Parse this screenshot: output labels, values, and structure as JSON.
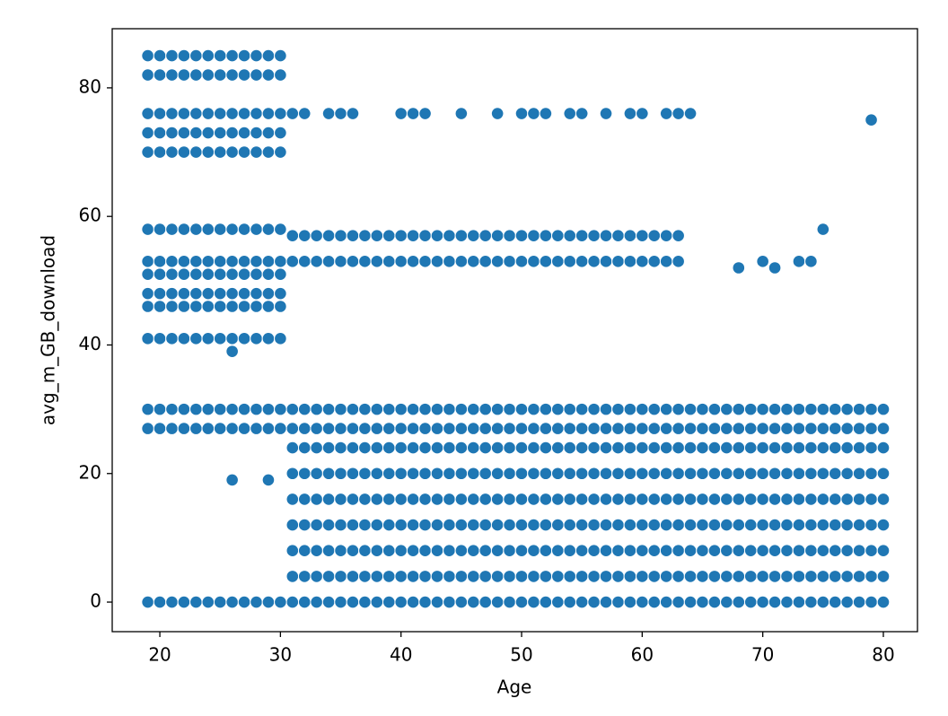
{
  "chart_data": {
    "type": "scatter",
    "xlabel": "Age",
    "ylabel": "avg_m_GB_download",
    "color": "#1f77b4",
    "xlim": [
      16.05,
      82.83
    ],
    "ylim": [
      -4.6,
      89.2
    ],
    "xticks": [
      20,
      30,
      40,
      50,
      60,
      70,
      80
    ],
    "yticks": [
      0,
      20,
      40,
      60,
      80
    ],
    "grid": false,
    "x": [
      31,
      31,
      31,
      31,
      31,
      31,
      31,
      31,
      31,
      32,
      32,
      32,
      32,
      32,
      32,
      32,
      32,
      32,
      33,
      33,
      33,
      33,
      33,
      33,
      33,
      33,
      33,
      34,
      34,
      34,
      34,
      34,
      34,
      34,
      34,
      34,
      35,
      35,
      35,
      35,
      35,
      35,
      35,
      35,
      35,
      36,
      36,
      36,
      36,
      36,
      36,
      36,
      36,
      36,
      37,
      37,
      37,
      37,
      37,
      37,
      37,
      37,
      37,
      38,
      38,
      38,
      38,
      38,
      38,
      38,
      38,
      38,
      39,
      39,
      39,
      39,
      39,
      39,
      39,
      39,
      39,
      40,
      40,
      40,
      40,
      40,
      40,
      40,
      40,
      40,
      41,
      41,
      41,
      41,
      41,
      41,
      41,
      41,
      41,
      42,
      42,
      42,
      42,
      42,
      42,
      42,
      42,
      42,
      43,
      43,
      43,
      43,
      43,
      43,
      43,
      43,
      43,
      44,
      44,
      44,
      44,
      44,
      44,
      44,
      44,
      44,
      45,
      45,
      45,
      45,
      45,
      45,
      45,
      45,
      45,
      46,
      46,
      46,
      46,
      46,
      46,
      46,
      46,
      46,
      47,
      47,
      47,
      47,
      47,
      47,
      47,
      47,
      47,
      48,
      48,
      48,
      48,
      48,
      48,
      48,
      48,
      48,
      49,
      49,
      49,
      49,
      49,
      49,
      49,
      49,
      49,
      50,
      50,
      50,
      50,
      50,
      50,
      50,
      50,
      50,
      51,
      51,
      51,
      51,
      51,
      51,
      51,
      51,
      51,
      52,
      52,
      52,
      52,
      52,
      52,
      52,
      52,
      52,
      53,
      53,
      53,
      53,
      53,
      53,
      53,
      53,
      53,
      54,
      54,
      54,
      54,
      54,
      54,
      54,
      54,
      54,
      55,
      55,
      55,
      55,
      55,
      55,
      55,
      55,
      55,
      56,
      56,
      56,
      56,
      56,
      56,
      56,
      56,
      56,
      57,
      57,
      57,
      57,
      57,
      57,
      57,
      57,
      57,
      58,
      58,
      58,
      58,
      58,
      58,
      58,
      58,
      58,
      59,
      59,
      59,
      59,
      59,
      59,
      59,
      59,
      59,
      60,
      60,
      60,
      60,
      60,
      60,
      60,
      60,
      60,
      61,
      61,
      61,
      61,
      61,
      61,
      61,
      61,
      61,
      62,
      62,
      62,
      62,
      62,
      62,
      62,
      62,
      62,
      63,
      63,
      63,
      63,
      63,
      63,
      63,
      63,
      63,
      64,
      64,
      64,
      64,
      64,
      64,
      64,
      64,
      64,
      65,
      65,
      65,
      65,
      65,
      65,
      65,
      65,
      65,
      66,
      66,
      66,
      66,
      66,
      66,
      66,
      66,
      66,
      67,
      67,
      67,
      67,
      67,
      67,
      67,
      67,
      67,
      68,
      68,
      68,
      68,
      68,
      68,
      68,
      68,
      68,
      69,
      69,
      69,
      69,
      69,
      69,
      69,
      69,
      69,
      70,
      70,
      70,
      70,
      70,
      70,
      70,
      70,
      70,
      71,
      71,
      71,
      71,
      71,
      71,
      71,
      71,
      71,
      72,
      72,
      72,
      72,
      72,
      72,
      72,
      72,
      72,
      73,
      73,
      73,
      73,
      73,
      73,
      73,
      73,
      73,
      74,
      74,
      74,
      74,
      74,
      74,
      74,
      74,
      74,
      75,
      75,
      75,
      75,
      75,
      75,
      75,
      75,
      75,
      76,
      76,
      76,
      76,
      76,
      76,
      76,
      76,
      76,
      77,
      77,
      77,
      77,
      77,
      77,
      77,
      77,
      77,
      78,
      78,
      78,
      78,
      78,
      78,
      78,
      78,
      78,
      79,
      79,
      79,
      79,
      79,
      79,
      79,
      79,
      79,
      80,
      80,
      80,
      80,
      80,
      80,
      80,
      80,
      80,
      19,
      19,
      19,
      19,
      19,
      19,
      19,
      19,
      19,
      19,
      19,
      19,
      19,
      19,
      20,
      20,
      20,
      20,
      20,
      20,
      20,
      20,
      20,
      20,
      20,
      20,
      20,
      20,
      21,
      21,
      21,
      21,
      21,
      21,
      21,
      21,
      21,
      21,
      21,
      21,
      21,
      21,
      22,
      22,
      22,
      22,
      22,
      22,
      22,
      22,
      22,
      22,
      22,
      22,
      22,
      22,
      23,
      23,
      23,
      23,
      23,
      23,
      23,
      23,
      23,
      23,
      23,
      23,
      23,
      23,
      24,
      24,
      24,
      24,
      24,
      24,
      24,
      24,
      24,
      24,
      24,
      24,
      24,
      24,
      25,
      25,
      25,
      25,
      25,
      25,
      25,
      25,
      25,
      25,
      25,
      25,
      25,
      25,
      26,
      26,
      26,
      26,
      26,
      26,
      26,
      26,
      26,
      26,
      26,
      26,
      26,
      26,
      27,
      27,
      27,
      27,
      27,
      27,
      27,
      27,
      27,
      27,
      27,
      27,
      27,
      27,
      28,
      28,
      28,
      28,
      28,
      28,
      28,
      28,
      28,
      28,
      28,
      28,
      28,
      28,
      29,
      29,
      29,
      29,
      29,
      29,
      29,
      29,
      29,
      29,
      29,
      29,
      29,
      29,
      30,
      30,
      30,
      30,
      30,
      30,
      30,
      30,
      30,
      30,
      30,
      30,
      30,
      30,
      31,
      32,
      33,
      34,
      35,
      36,
      37,
      38,
      39,
      40,
      41,
      42,
      43,
      44,
      45,
      46,
      47,
      48,
      49,
      50,
      51,
      52,
      53,
      54,
      55,
      56,
      57,
      58,
      59,
      60,
      61,
      62,
      63,
      31,
      32,
      33,
      34,
      35,
      36,
      37,
      38,
      39,
      40,
      41,
      42,
      43,
      44,
      45,
      46,
      47,
      48,
      49,
      50,
      51,
      52,
      53,
      54,
      55,
      56,
      57,
      58,
      59,
      60,
      61,
      62,
      63,
      31,
      32,
      34,
      35,
      36,
      40,
      41,
      42,
      45,
      48,
      50,
      51,
      52,
      54,
      55,
      57,
      59,
      60,
      62,
      63,
      64,
      26,
      29,
      26,
      68,
      70,
      71,
      73,
      74,
      75,
      79
    ],
    "y": [
      0,
      4,
      8,
      12,
      16,
      20,
      24,
      27,
      30,
      0,
      4,
      8,
      12,
      16,
      20,
      24,
      27,
      30,
      0,
      4,
      8,
      12,
      16,
      20,
      24,
      27,
      30,
      0,
      4,
      8,
      12,
      16,
      20,
      24,
      27,
      30,
      0,
      4,
      8,
      12,
      16,
      20,
      24,
      27,
      30,
      0,
      4,
      8,
      12,
      16,
      20,
      24,
      27,
      30,
      0,
      4,
      8,
      12,
      16,
      20,
      24,
      27,
      30,
      0,
      4,
      8,
      12,
      16,
      20,
      24,
      27,
      30,
      0,
      4,
      8,
      12,
      16,
      20,
      24,
      27,
      30,
      0,
      4,
      8,
      12,
      16,
      20,
      24,
      27,
      30,
      0,
      4,
      8,
      12,
      16,
      20,
      24,
      27,
      30,
      0,
      4,
      8,
      12,
      16,
      20,
      24,
      27,
      30,
      0,
      4,
      8,
      12,
      16,
      20,
      24,
      27,
      30,
      0,
      4,
      8,
      12,
      16,
      20,
      24,
      27,
      30,
      0,
      4,
      8,
      12,
      16,
      20,
      24,
      27,
      30,
      0,
      4,
      8,
      12,
      16,
      20,
      24,
      27,
      30,
      0,
      4,
      8,
      12,
      16,
      20,
      24,
      27,
      30,
      0,
      4,
      8,
      12,
      16,
      20,
      24,
      27,
      30,
      0,
      4,
      8,
      12,
      16,
      20,
      24,
      27,
      30,
      0,
      4,
      8,
      12,
      16,
      20,
      24,
      27,
      30,
      0,
      4,
      8,
      12,
      16,
      20,
      24,
      27,
      30,
      0,
      4,
      8,
      12,
      16,
      20,
      24,
      27,
      30,
      0,
      4,
      8,
      12,
      16,
      20,
      24,
      27,
      30,
      0,
      4,
      8,
      12,
      16,
      20,
      24,
      27,
      30,
      0,
      4,
      8,
      12,
      16,
      20,
      24,
      27,
      30,
      0,
      4,
      8,
      12,
      16,
      20,
      24,
      27,
      30,
      0,
      4,
      8,
      12,
      16,
      20,
      24,
      27,
      30,
      0,
      4,
      8,
      12,
      16,
      20,
      24,
      27,
      30,
      0,
      4,
      8,
      12,
      16,
      20,
      24,
      27,
      30,
      0,
      4,
      8,
      12,
      16,
      20,
      24,
      27,
      30,
      0,
      4,
      8,
      12,
      16,
      20,
      24,
      27,
      30,
      0,
      4,
      8,
      12,
      16,
      20,
      24,
      27,
      30,
      0,
      4,
      8,
      12,
      16,
      20,
      24,
      27,
      30,
      0,
      4,
      8,
      12,
      16,
      20,
      24,
      27,
      30,
      0,
      4,
      8,
      12,
      16,
      20,
      24,
      27,
      30,
      0,
      4,
      8,
      12,
      16,
      20,
      24,
      27,
      30,
      0,
      4,
      8,
      12,
      16,
      20,
      24,
      27,
      30,
      0,
      4,
      8,
      12,
      16,
      20,
      24,
      27,
      30,
      0,
      4,
      8,
      12,
      16,
      20,
      24,
      27,
      30,
      0,
      4,
      8,
      12,
      16,
      20,
      24,
      27,
      30,
      0,
      4,
      8,
      12,
      16,
      20,
      24,
      27,
      30,
      0,
      4,
      8,
      12,
      16,
      20,
      24,
      27,
      30,
      0,
      4,
      8,
      12,
      16,
      20,
      24,
      27,
      30,
      0,
      4,
      8,
      12,
      16,
      20,
      24,
      27,
      30,
      0,
      4,
      8,
      12,
      16,
      20,
      24,
      27,
      30,
      0,
      4,
      8,
      12,
      16,
      20,
      24,
      27,
      30,
      0,
      4,
      8,
      12,
      16,
      20,
      24,
      27,
      30,
      0,
      4,
      8,
      12,
      16,
      20,
      24,
      27,
      30,
      0,
      4,
      8,
      12,
      16,
      20,
      24,
      27,
      30,
      0,
      4,
      8,
      12,
      16,
      20,
      24,
      27,
      30,
      85,
      82,
      76,
      73,
      70,
      58,
      53,
      51,
      48,
      46,
      41,
      30,
      27,
      0,
      85,
      82,
      76,
      73,
      70,
      58,
      53,
      51,
      48,
      46,
      41,
      30,
      27,
      0,
      85,
      82,
      76,
      73,
      70,
      58,
      53,
      51,
      48,
      46,
      41,
      30,
      27,
      0,
      85,
      82,
      76,
      73,
      70,
      58,
      53,
      51,
      48,
      46,
      41,
      30,
      27,
      0,
      85,
      82,
      76,
      73,
      70,
      58,
      53,
      51,
      48,
      46,
      41,
      30,
      27,
      0,
      85,
      82,
      76,
      73,
      70,
      58,
      53,
      51,
      48,
      46,
      41,
      30,
      27,
      0,
      85,
      82,
      76,
      73,
      70,
      58,
      53,
      51,
      48,
      46,
      41,
      30,
      27,
      0,
      85,
      82,
      76,
      73,
      70,
      58,
      53,
      51,
      48,
      46,
      41,
      30,
      27,
      0,
      85,
      82,
      76,
      73,
      70,
      58,
      53,
      51,
      48,
      46,
      41,
      30,
      27,
      0,
      85,
      82,
      76,
      73,
      70,
      58,
      53,
      51,
      48,
      46,
      41,
      30,
      27,
      0,
      85,
      82,
      76,
      73,
      70,
      58,
      53,
      51,
      48,
      46,
      41,
      30,
      27,
      0,
      85,
      82,
      76,
      73,
      70,
      58,
      53,
      51,
      48,
      46,
      41,
      30,
      27,
      0,
      53,
      53,
      53,
      53,
      53,
      53,
      53,
      53,
      53,
      53,
      53,
      53,
      53,
      53,
      53,
      53,
      53,
      53,
      53,
      53,
      53,
      53,
      53,
      53,
      53,
      53,
      53,
      53,
      53,
      53,
      53,
      53,
      53,
      57,
      57,
      57,
      57,
      57,
      57,
      57,
      57,
      57,
      57,
      57,
      57,
      57,
      57,
      57,
      57,
      57,
      57,
      57,
      57,
      57,
      57,
      57,
      57,
      57,
      57,
      57,
      57,
      57,
      57,
      57,
      57,
      57,
      76,
      76,
      76,
      76,
      76,
      76,
      76,
      76,
      76,
      76,
      76,
      76,
      76,
      76,
      76,
      76,
      76,
      76,
      76,
      76,
      76,
      19,
      19,
      39,
      52,
      53,
      52,
      53,
      53,
      58,
      75
    ]
  }
}
